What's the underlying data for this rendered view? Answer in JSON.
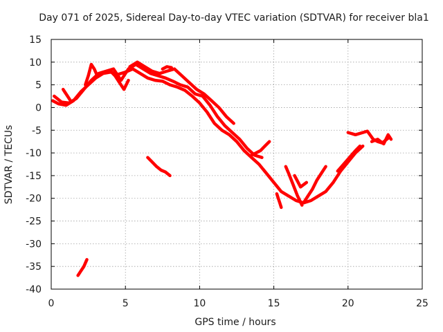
{
  "chart_data": {
    "type": "scatter",
    "title": "Day 071 of 2025, Sidereal Day-to-day VTEC variation (SDTVAR) for receiver bla1",
    "xlabel": "GPS time / hours",
    "ylabel": "SDTVAR / TECUs",
    "xlim": [
      0,
      25
    ],
    "ylim": [
      -40,
      15
    ],
    "xticks": [
      0,
      5,
      10,
      15,
      20,
      25
    ],
    "yticks": [
      15,
      10,
      5,
      0,
      -5,
      -10,
      -15,
      -20,
      -25,
      -30,
      -35,
      -40
    ],
    "grid": true,
    "color": "#ff0000",
    "series": [
      {
        "name": "main-trace-a",
        "x": [
          0.1,
          0.5,
          1.0,
          1.5,
          2.0,
          2.5,
          3.0,
          3.5,
          4.0,
          4.5,
          5.0,
          5.5,
          6.0,
          6.5,
          7.0,
          7.5,
          8.0,
          8.5,
          9.0,
          9.5,
          10.0,
          10.5,
          11.0,
          11.5,
          12.0,
          12.5,
          13.0,
          13.5,
          14.0,
          14.5,
          15.0,
          15.5,
          16.0,
          16.5,
          17.0,
          17.5,
          18.0,
          18.5,
          19.0,
          19.5,
          20.0,
          20.5,
          21.0
        ],
        "y": [
          1.5,
          0.8,
          0.5,
          1.5,
          3.5,
          5.0,
          6.5,
          7.5,
          7.8,
          7.3,
          7.8,
          8.5,
          7.5,
          6.5,
          6.0,
          5.8,
          5.0,
          4.5,
          3.8,
          2.5,
          1.0,
          -1.0,
          -3.5,
          -5.0,
          -6.0,
          -7.5,
          -9.5,
          -11.0,
          -12.5,
          -14.5,
          -16.5,
          -18.5,
          -19.5,
          -20.5,
          -21.0,
          -20.5,
          -19.5,
          -18.5,
          -16.5,
          -14.0,
          -12.0,
          -10.0,
          -8.5
        ]
      },
      {
        "name": "main-trace-b",
        "x": [
          0.2,
          0.7,
          1.2,
          1.7,
          2.2,
          2.7,
          3.2,
          3.7,
          4.2,
          4.7,
          5.2,
          5.7,
          6.2,
          6.7,
          7.2,
          7.7,
          8.2,
          8.7,
          9.2,
          9.7,
          10.2,
          10.7,
          11.2,
          11.7,
          12.2,
          12.7,
          13.2,
          13.7,
          14.2
        ],
        "y": [
          2.5,
          1.2,
          1.0,
          2.0,
          4.0,
          6.0,
          7.5,
          8.0,
          8.5,
          6.0,
          8.5,
          9.5,
          8.5,
          7.5,
          7.0,
          6.5,
          5.8,
          5.0,
          4.5,
          3.0,
          2.5,
          0.5,
          -2.0,
          -4.0,
          -5.5,
          -7.0,
          -9.0,
          -10.5,
          -11.0
        ]
      },
      {
        "name": "peak-spike-left",
        "x": [
          2.3,
          2.5,
          2.7,
          2.9,
          3.1
        ],
        "y": [
          5.0,
          7.0,
          9.5,
          8.5,
          7.0
        ]
      },
      {
        "name": "dip-near-four",
        "x": [
          4.0,
          4.3,
          4.6,
          4.9,
          5.2
        ],
        "y": [
          8.0,
          7.0,
          5.5,
          4.0,
          6.0
        ]
      },
      {
        "name": "upper-trace",
        "x": [
          5.3,
          5.8,
          6.3,
          6.8,
          7.3,
          7.8,
          8.3,
          8.8,
          9.3,
          9.8,
          10.3,
          10.8,
          11.3,
          11.8,
          12.3
        ],
        "y": [
          9.0,
          10.0,
          9.0,
          8.0,
          7.5,
          8.0,
          8.5,
          7.0,
          5.5,
          4.0,
          3.0,
          1.5,
          0.0,
          -2.0,
          -3.5
        ]
      },
      {
        "name": "short-top-segment",
        "x": [
          7.5,
          7.8,
          8.1
        ],
        "y": [
          8.5,
          9.0,
          8.8
        ]
      },
      {
        "name": "small-bump-early",
        "x": [
          0.8,
          0.9,
          1.1,
          1.3
        ],
        "y": [
          4.0,
          3.5,
          2.5,
          1.5
        ]
      },
      {
        "name": "isolated-mid-segment",
        "x": [
          6.5,
          6.8,
          7.1,
          7.4,
          7.7,
          8.0
        ],
        "y": [
          -11.0,
          -12.0,
          -13.0,
          -13.8,
          -14.2,
          -15.0
        ]
      },
      {
        "name": "isolated-low-segment",
        "x": [
          1.8,
          2.0,
          2.2,
          2.4
        ],
        "y": [
          -37.0,
          -36.0,
          -35.0,
          -33.5
        ]
      },
      {
        "name": "short-descending-segment",
        "x": [
          13.5,
          13.8,
          14.1,
          14.4,
          14.7
        ],
        "y": [
          -10.5,
          -10.0,
          -9.5,
          -8.5,
          -7.5
        ]
      },
      {
        "name": "drop-near-fifteen",
        "x": [
          15.2,
          15.3,
          15.4,
          15.5
        ],
        "y": [
          -19.0,
          -20.0,
          -21.0,
          -22.0
        ]
      },
      {
        "name": "v-trace-left",
        "x": [
          15.8,
          16.0,
          16.3,
          16.6,
          16.9
        ],
        "y": [
          -13.0,
          -14.5,
          -17.0,
          -19.5,
          -21.5
        ]
      },
      {
        "name": "v-trace-right",
        "x": [
          17.0,
          17.3,
          17.6,
          17.9,
          18.2,
          18.5
        ],
        "y": [
          -21.0,
          -19.5,
          -18.0,
          -16.0,
          -14.5,
          -13.0
        ]
      },
      {
        "name": "upper-rising-segment",
        "x": [
          16.4,
          16.8,
          17.2
        ],
        "y": [
          -15.0,
          -17.5,
          -16.5
        ]
      },
      {
        "name": "rising-segment-end",
        "x": [
          19.3,
          19.7,
          20.1,
          20.5,
          20.8
        ],
        "y": [
          -14.0,
          -12.5,
          -11.0,
          -9.5,
          -8.5
        ]
      },
      {
        "name": "late-cluster",
        "x": [
          20.0,
          20.5,
          21.0,
          21.3,
          21.7,
          22.0,
          22.3,
          22.8
        ],
        "y": [
          -5.5,
          -6.0,
          -5.5,
          -5.2,
          -7.0,
          -7.5,
          -7.8,
          -6.5
        ]
      },
      {
        "name": "late-cluster-tail",
        "x": [
          21.6,
          22.0,
          22.4,
          22.7,
          22.9
        ],
        "y": [
          -7.5,
          -7.0,
          -8.0,
          -6.0,
          -7.0
        ]
      }
    ]
  }
}
